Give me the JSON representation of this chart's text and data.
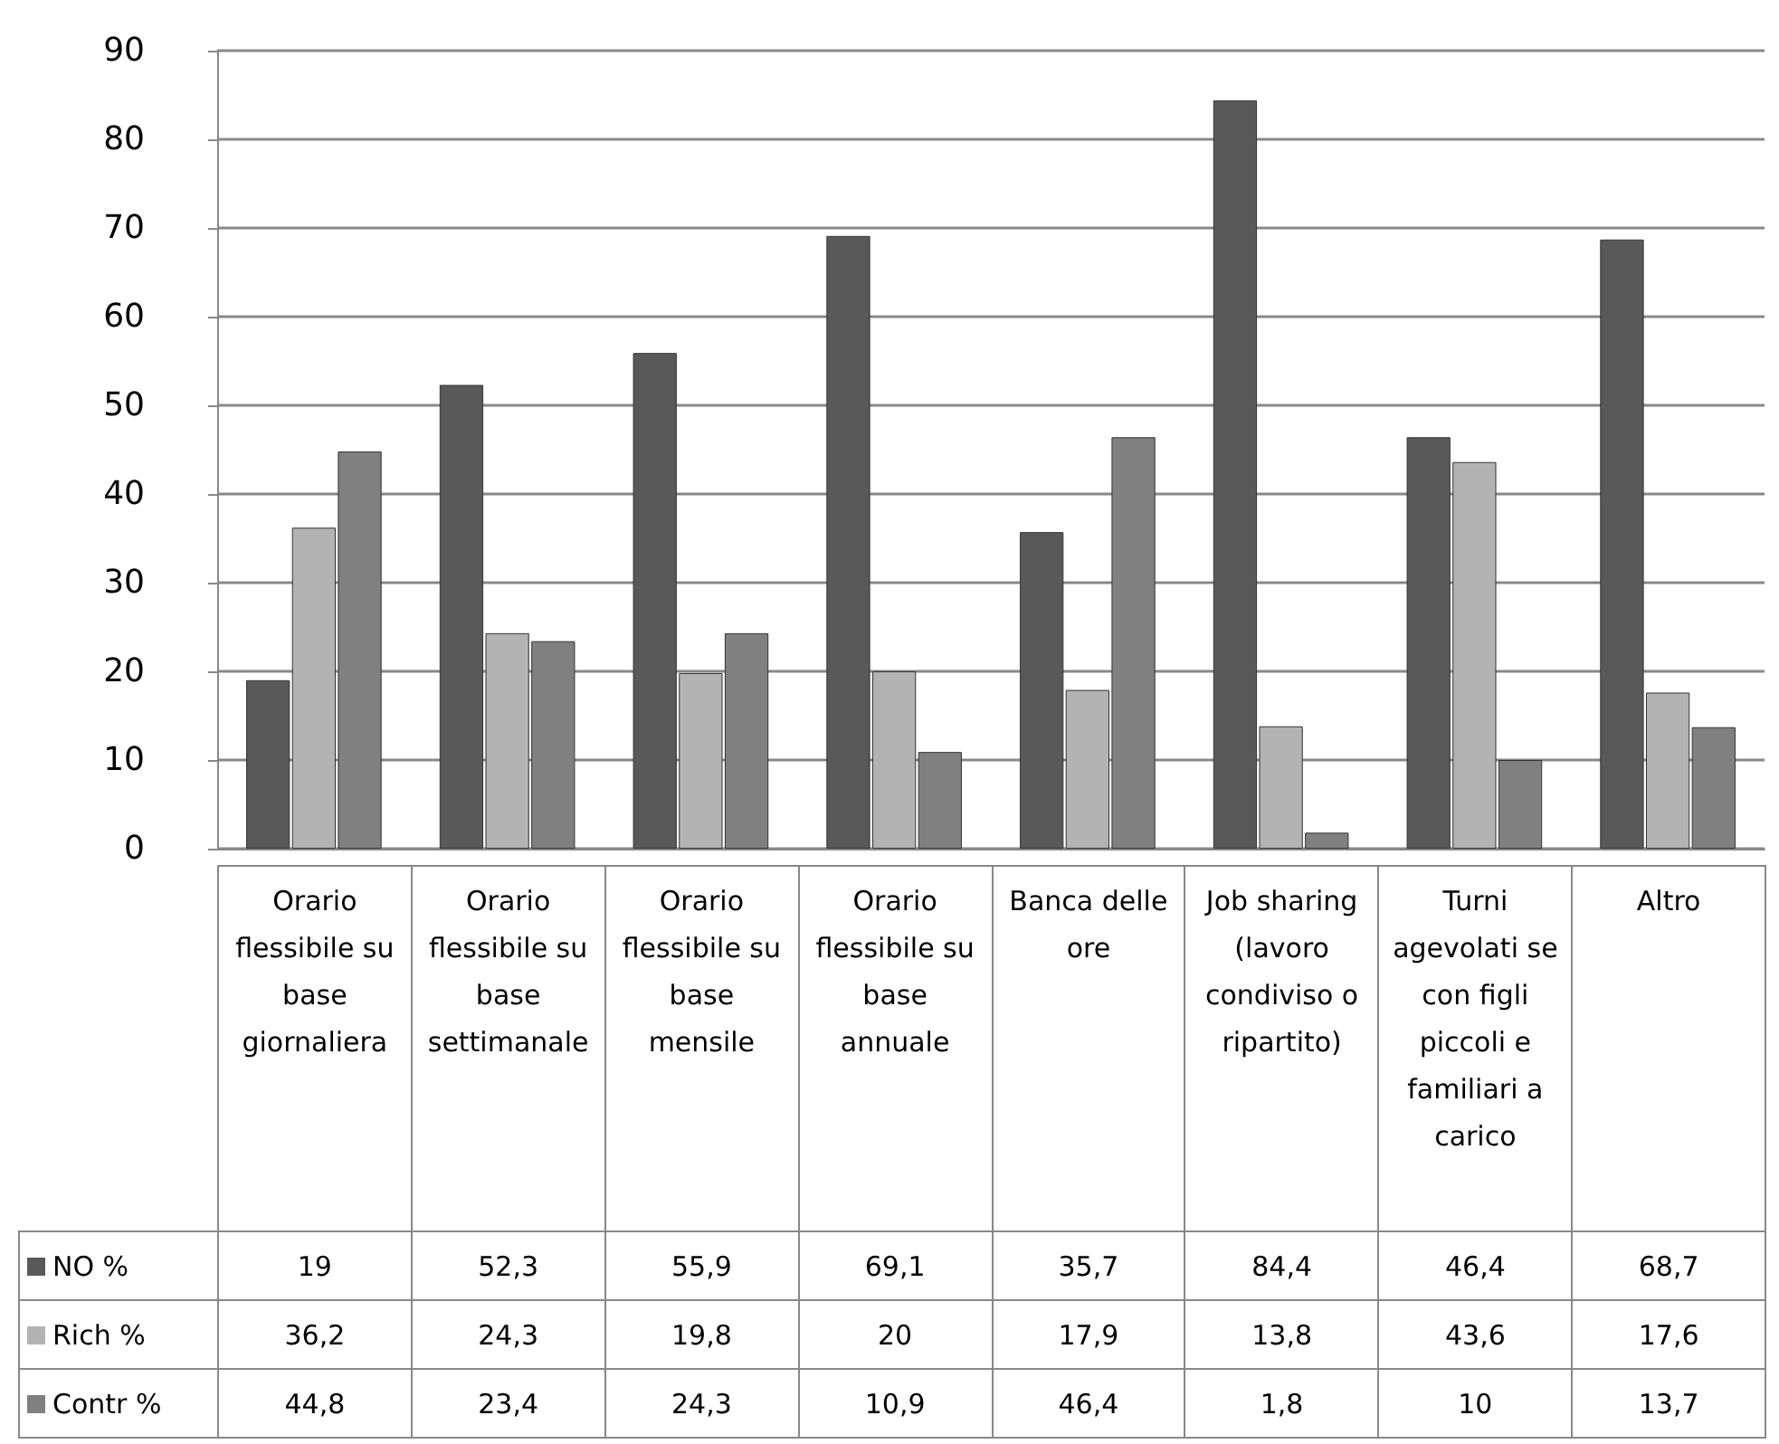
{
  "chart_data": {
    "type": "bar",
    "categories": [
      "Orario flessibile su base giornaliera",
      "Orario flessibile su base settimanale",
      "Orario flessibile su base mensile",
      "Orario flessibile su base annuale",
      "Banca delle ore",
      "Job sharing (lavoro condiviso o ripartito)",
      "Turni agevolati se con figli piccoli e familiari a carico",
      "Altro"
    ],
    "series": [
      {
        "name": "NO %",
        "color": "#595959",
        "values": [
          19,
          52.3,
          55.9,
          69.1,
          35.7,
          84.4,
          46.4,
          68.7
        ],
        "value_labels": [
          "19",
          "52,3",
          "55,9",
          "69,1",
          "35,7",
          "84,4",
          "46,4",
          "68,7"
        ]
      },
      {
        "name": "Rich %",
        "color": "#b3b3b3",
        "values": [
          36.2,
          24.3,
          19.8,
          20,
          17.9,
          13.8,
          43.6,
          17.6
        ],
        "value_labels": [
          "36,2",
          "24,3",
          "19,8",
          "20",
          "17,9",
          "13,8",
          "43,6",
          "17,6"
        ]
      },
      {
        "name": "Contr %",
        "color": "#808080",
        "values": [
          44.8,
          23.4,
          24.3,
          10.9,
          46.4,
          1.8,
          10,
          13.7
        ],
        "value_labels": [
          "44,8",
          "23,4",
          "24,3",
          "10,9",
          "46,4",
          "1,8",
          "10",
          "13,7"
        ]
      }
    ],
    "ylim": [
      0,
      90
    ],
    "yticks": [
      0,
      10,
      20,
      30,
      40,
      50,
      60,
      70,
      80,
      90
    ],
    "grid": "y",
    "legend": "bottom"
  }
}
